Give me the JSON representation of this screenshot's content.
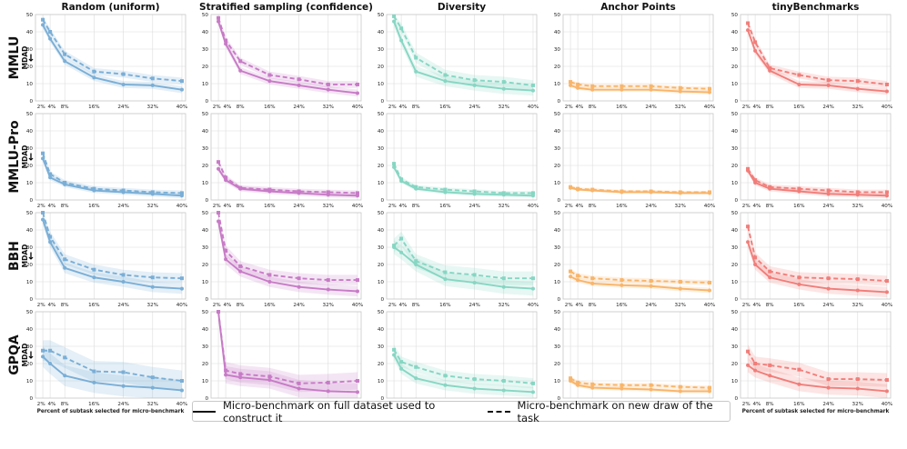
{
  "legend": {
    "solid_label": "Micro-benchmark on full dataset used to construct it",
    "dashed_label": "Micro-benchmark on new draw of the task"
  },
  "chart_data": {
    "type": "line",
    "grid": true,
    "columns": [
      {
        "title": "Random (uniform)",
        "color": "#7aaed6"
      },
      {
        "title": "Stratified sampling (confidence)",
        "color": "#c77bc6"
      },
      {
        "title": "Diversity",
        "color": "#86d6c3"
      },
      {
        "title": "Anchor Points",
        "color": "#f8b56a"
      },
      {
        "title": "tinyBenchmarks",
        "color": "#f07e7a"
      }
    ],
    "rows": [
      {
        "title": "MMLU",
        "ylabel": "MDAD",
        "arrow": "↓"
      },
      {
        "title": "MMLU-Pro",
        "ylabel": "MDAD",
        "arrow": "↓"
      },
      {
        "title": "BBH",
        "ylabel": "MDAD",
        "arrow": "↓"
      },
      {
        "title": "GPQA",
        "ylabel": "MDAD",
        "arrow": "↓"
      }
    ],
    "x": [
      2,
      4,
      8,
      16,
      24,
      32,
      40
    ],
    "x_tick_labels": [
      "2%",
      "4%",
      "8%",
      "16%",
      "24%",
      "32%",
      "40%"
    ],
    "xlabel": "Percent of subtask selected for micro-benchmark",
    "ylim": [
      0,
      50
    ],
    "yticks": [
      0,
      10,
      20,
      30,
      40,
      50
    ],
    "panels": [
      [
        {
          "solid": [
            44,
            36,
            23,
            13.5,
            9.5,
            9,
            6.5
          ],
          "dashed": [
            47,
            40,
            27,
            17,
            15.5,
            13,
            11.5
          ],
          "band": 2
        },
        {
          "solid": [
            46,
            33,
            17.5,
            11.5,
            9,
            6.5,
            4.5
          ],
          "dashed": [
            48,
            35,
            23,
            15,
            12.5,
            9.5,
            9.5
          ],
          "band": 2
        },
        {
          "solid": [
            46,
            35,
            17,
            11.5,
            9,
            7,
            6
          ],
          "dashed": [
            49,
            42,
            25,
            15,
            12,
            11,
            9
          ],
          "band": 3
        },
        {
          "solid": [
            9,
            7.5,
            6.5,
            6.5,
            6.5,
            5.5,
            5
          ],
          "dashed": [
            11,
            9.5,
            8.5,
            8.5,
            8.5,
            7.5,
            7
          ],
          "band": 1.2
        },
        {
          "solid": [
            41,
            29,
            17.5,
            9.5,
            9,
            7,
            5.5
          ],
          "dashed": [
            45,
            34,
            19,
            15,
            12,
            11.5,
            9.5
          ],
          "band": 2
        }
      ],
      [
        {
          "solid": [
            24,
            13,
            9,
            5.5,
            4.5,
            3.5,
            2.5
          ],
          "dashed": [
            27,
            15,
            10,
            6.5,
            5.5,
            4.5,
            4
          ],
          "band": 1.5
        },
        {
          "solid": [
            18,
            11.5,
            6.5,
            5,
            4,
            3,
            2.5
          ],
          "dashed": [
            22,
            13,
            7,
            6,
            5,
            4.5,
            4
          ],
          "band": 1.5
        },
        {
          "solid": [
            19,
            11,
            6.5,
            4.5,
            3.5,
            3,
            2.5
          ],
          "dashed": [
            21,
            12,
            7.5,
            6,
            5,
            4,
            4
          ],
          "band": 1.2
        },
        {
          "solid": [
            7,
            6,
            5.5,
            4.5,
            4.5,
            4,
            4
          ],
          "dashed": [
            7.5,
            6.5,
            6,
            5,
            5,
            4.5,
            4.5
          ],
          "band": 0.8
        },
        {
          "solid": [
            17,
            10,
            6.5,
            5,
            3.5,
            3,
            2.5
          ],
          "dashed": [
            18,
            11.5,
            7.5,
            6.5,
            5.5,
            4.5,
            4.5
          ],
          "band": 1.5
        }
      ],
      [
        {
          "solid": [
            46,
            33,
            18,
            12.5,
            10,
            7,
            6
          ],
          "dashed": [
            50,
            36,
            23,
            17,
            14,
            12.5,
            12
          ],
          "band": 3
        },
        {
          "solid": [
            45,
            23,
            16,
            10,
            7,
            5.5,
            4.5
          ],
          "dashed": [
            50,
            28,
            19,
            14,
            12,
            11,
            11
          ],
          "band": 3
        },
        {
          "solid": [
            30,
            27,
            20,
            11.5,
            9.5,
            7,
            6
          ],
          "dashed": [
            31,
            35,
            22,
            15.5,
            14,
            12,
            12
          ],
          "band": 4
        },
        {
          "solid": [
            13,
            11,
            9,
            8,
            7.5,
            6,
            5
          ],
          "dashed": [
            16,
            13.5,
            12,
            11,
            10.5,
            10,
            9.5
          ],
          "band": 1.5
        },
        {
          "solid": [
            33,
            20,
            12.5,
            8.5,
            6,
            5,
            4
          ],
          "dashed": [
            42,
            24,
            16,
            12.5,
            12,
            11.5,
            10.5
          ],
          "band": 3
        }
      ],
      [
        {
          "solid": [
            24,
            20,
            13,
            9,
            7,
            6,
            4.5
          ],
          "dashed": [
            27.5,
            27.5,
            23.5,
            15.5,
            15,
            12,
            10
          ],
          "band": 6
        },
        {
          "solid": [
            50,
            13.5,
            12,
            10.5,
            5.5,
            4,
            3.5
          ],
          "dashed": [
            50,
            16,
            14,
            12.5,
            8.5,
            9,
            10
          ],
          "band": 5
        },
        {
          "solid": [
            25,
            17,
            11.5,
            7.5,
            5.5,
            4.5,
            3.5
          ],
          "dashed": [
            28,
            21,
            18,
            13,
            11,
            10,
            8.5
          ],
          "band": 3
        },
        {
          "solid": [
            10,
            7.5,
            6,
            5.5,
            5,
            4,
            4
          ],
          "dashed": [
            11.5,
            9,
            8,
            7.5,
            7.5,
            6.5,
            6
          ],
          "band": 1.2
        },
        {
          "solid": [
            19,
            16,
            13,
            8,
            6,
            5.5,
            4
          ],
          "dashed": [
            27,
            20,
            19,
            16.5,
            11,
            11,
            10.5
          ],
          "band": 4
        }
      ]
    ]
  }
}
